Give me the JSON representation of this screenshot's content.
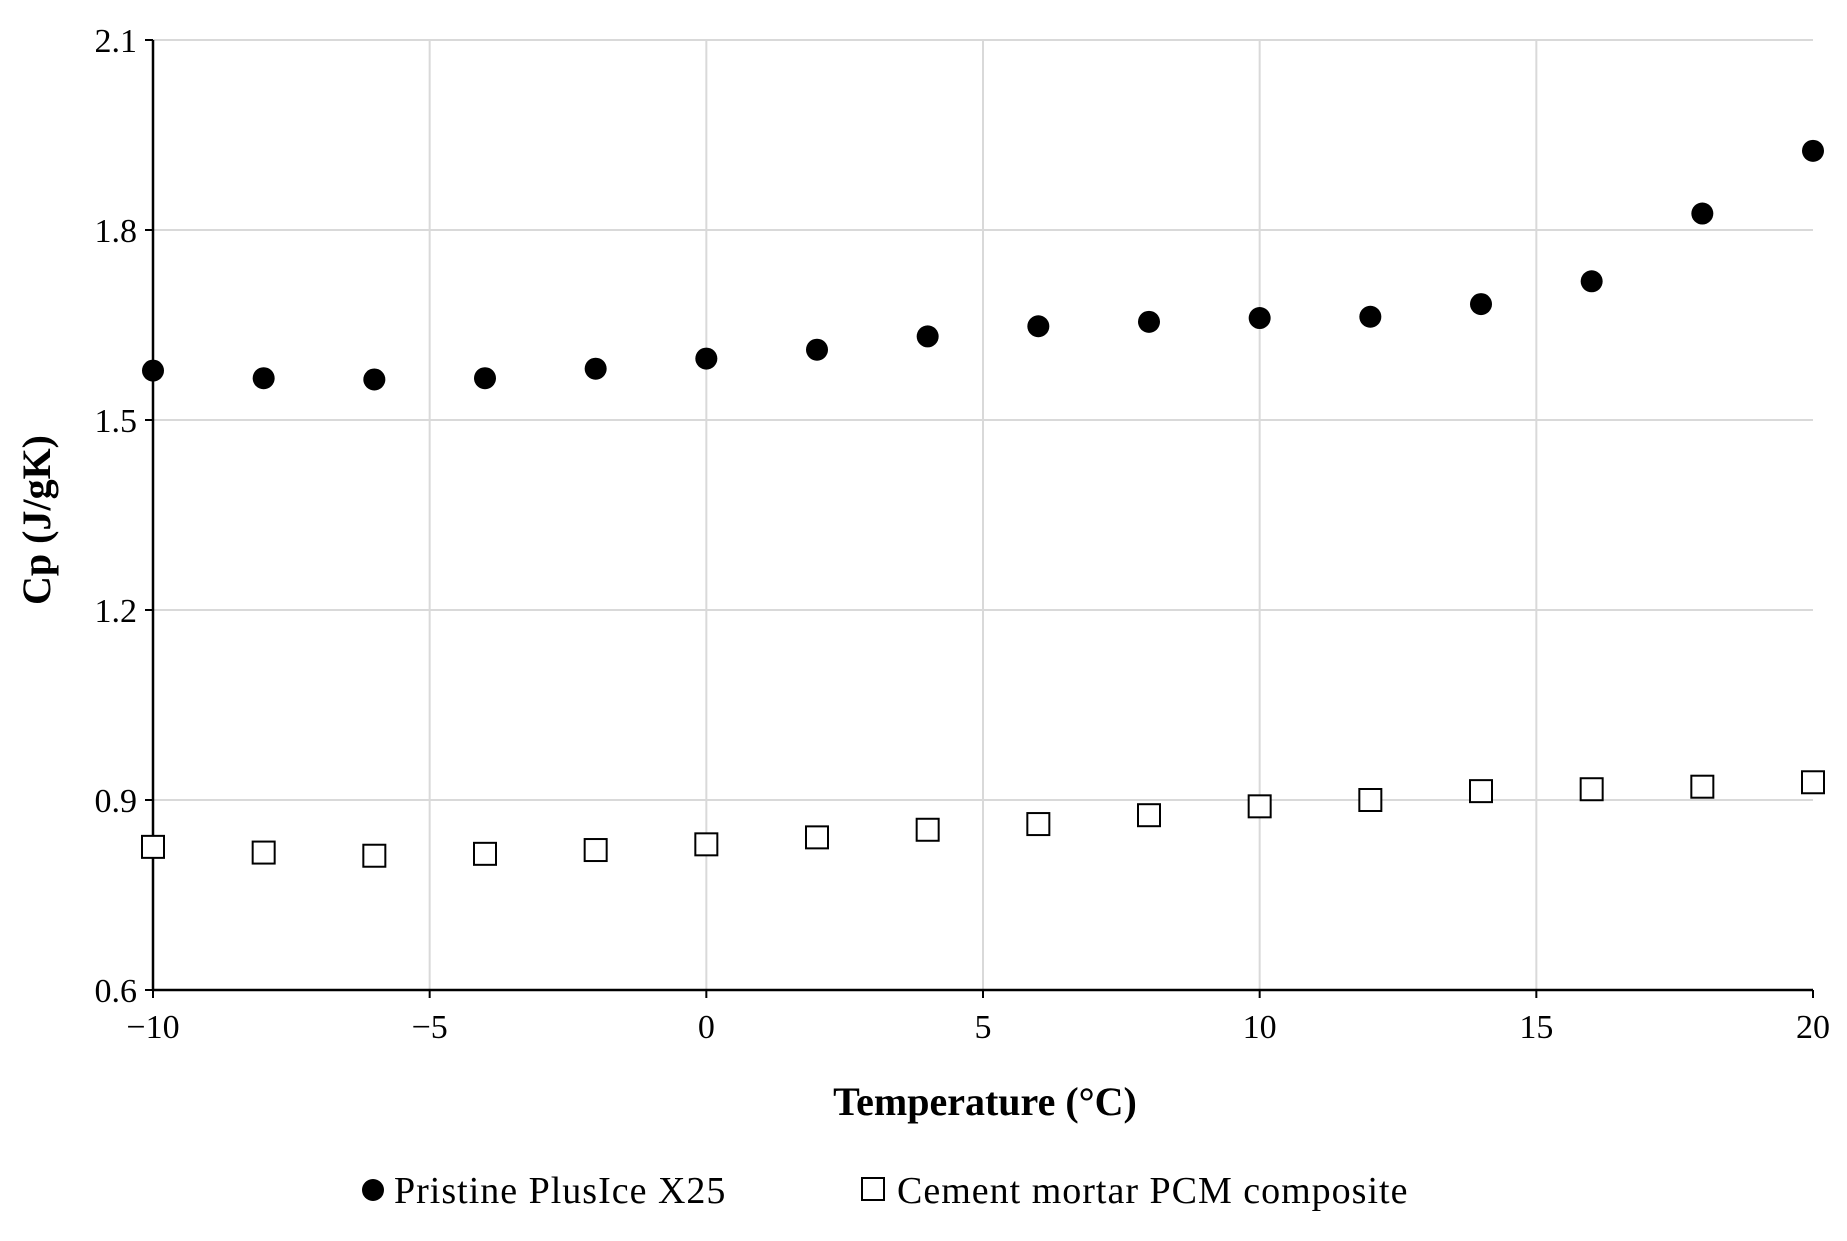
{
  "chart_data": {
    "type": "scatter",
    "title": "",
    "xlabel": "Temperature (°C)",
    "ylabel": "Cp (J/gK)",
    "xlim": [
      -10,
      20
    ],
    "ylim": [
      0.6,
      2.1
    ],
    "xticks": [
      -10,
      -5,
      0,
      5,
      10,
      15,
      20
    ],
    "yticks": [
      0.6,
      0.9,
      1.2,
      1.5,
      1.8,
      2.1
    ],
    "grid": true,
    "legend_position": "bottom",
    "series": [
      {
        "name": "Pristine PlusIce X25",
        "marker": "filled-circle",
        "color": "#000000",
        "x": [
          -10,
          -8,
          -6,
          -4,
          -2,
          0,
          2,
          4,
          6,
          8,
          10,
          12,
          14,
          16,
          18,
          20
        ],
        "y": [
          1.578,
          1.566,
          1.564,
          1.566,
          1.581,
          1.597,
          1.611,
          1.632,
          1.648,
          1.655,
          1.661,
          1.663,
          1.683,
          1.719,
          1.826,
          1.925
        ]
      },
      {
        "name": "Cement mortar PCM composite",
        "marker": "open-square",
        "color": "#000000",
        "x": [
          -10,
          -8,
          -6,
          -4,
          -2,
          0,
          2,
          4,
          6,
          8,
          10,
          12,
          14,
          16,
          18,
          20
        ],
        "y": [
          0.826,
          0.817,
          0.812,
          0.815,
          0.821,
          0.83,
          0.841,
          0.853,
          0.862,
          0.876,
          0.89,
          0.9,
          0.914,
          0.917,
          0.921,
          0.928
        ]
      }
    ]
  }
}
